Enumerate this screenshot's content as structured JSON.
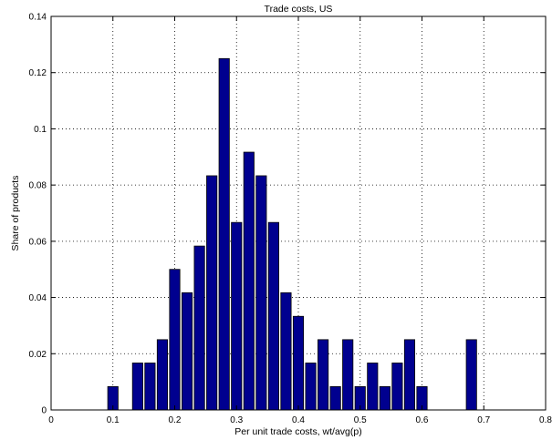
{
  "chart_data": {
    "type": "bar",
    "title": "Trade costs, US",
    "xlabel": "Per unit trade costs, wt/avg(p)",
    "ylabel": "Share of products",
    "xlim": [
      0,
      0.8
    ],
    "ylim": [
      0,
      0.14
    ],
    "xticks": [
      "0",
      "0.1",
      "0.2",
      "0.3",
      "0.4",
      "0.5",
      "0.6",
      "0.7",
      "0.8"
    ],
    "yticks": [
      "0",
      "0.02",
      "0.04",
      "0.06",
      "0.08",
      "0.1",
      "0.12",
      "0.14"
    ],
    "grid": true,
    "bar_width": 0.0167,
    "x": [
      0.1,
      0.14,
      0.16,
      0.18,
      0.2,
      0.22,
      0.24,
      0.26,
      0.28,
      0.3,
      0.32,
      0.34,
      0.36,
      0.38,
      0.4,
      0.42,
      0.44,
      0.46,
      0.48,
      0.5,
      0.52,
      0.54,
      0.56,
      0.58,
      0.6,
      0.68
    ],
    "values": [
      0.0083,
      0.0167,
      0.0167,
      0.025,
      0.05,
      0.0417,
      0.0583,
      0.0833,
      0.125,
      0.0667,
      0.0917,
      0.0833,
      0.0667,
      0.0417,
      0.0333,
      0.0167,
      0.025,
      0.0083,
      0.025,
      0.0083,
      0.0167,
      0.0083,
      0.0167,
      0.025,
      0.0083,
      0.025
    ],
    "colors": {
      "bar_fill": "#00008f",
      "bar_edge": "#000000",
      "grid": "#000000"
    }
  }
}
